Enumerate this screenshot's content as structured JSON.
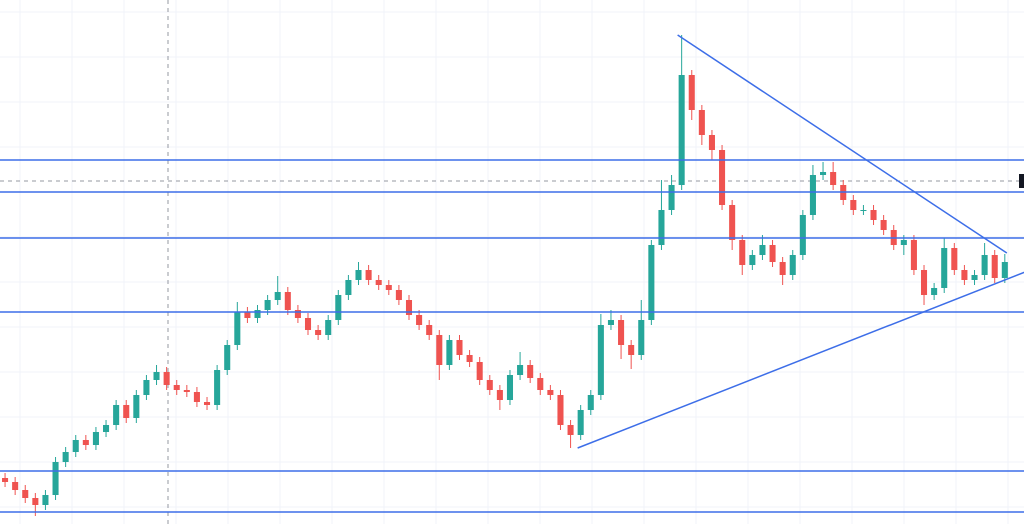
{
  "chart_data": {
    "type": "candlestick",
    "xlim": [
      -0.5,
      100.9
    ],
    "ylim": [
      0,
      524
    ],
    "grid": true,
    "up_color": "#26a69a",
    "down_color": "#ef5350",
    "line_color": "#3d6ee8",
    "open": [
      46,
      42,
      34,
      26,
      19,
      29,
      62,
      72,
      84,
      79,
      92,
      99,
      119,
      106,
      129,
      144,
      152,
      139,
      134,
      132,
      122,
      119,
      154,
      179,
      212,
      206,
      214,
      224,
      232,
      214,
      206,
      194,
      189,
      204,
      229,
      244,
      254,
      244,
      239,
      234,
      224,
      209,
      199,
      189,
      159,
      184,
      169,
      162,
      144,
      134,
      124,
      149,
      159,
      146,
      134,
      129,
      99,
      89,
      114,
      129,
      199,
      204,
      179,
      169,
      204,
      279,
      314,
      339,
      449,
      414,
      389,
      374,
      319,
      284,
      259,
      269,
      279,
      262,
      249,
      269,
      309,
      349,
      352,
      339,
      324,
      314,
      314,
      304,
      294,
      279,
      284,
      254,
      229,
      236,
      276,
      254,
      244,
      249,
      269,
      246
    ],
    "high": [
      51,
      47,
      39,
      31,
      34,
      67,
      77,
      89,
      89,
      97,
      104,
      124,
      124,
      134,
      149,
      159,
      157,
      144,
      139,
      137,
      127,
      159,
      184,
      222,
      217,
      219,
      229,
      248,
      237,
      219,
      211,
      199,
      209,
      234,
      249,
      262,
      259,
      249,
      244,
      239,
      229,
      214,
      204,
      194,
      189,
      189,
      174,
      167,
      149,
      139,
      154,
      172,
      164,
      151,
      139,
      134,
      104,
      119,
      134,
      210,
      214,
      209,
      184,
      224,
      284,
      344,
      349,
      489,
      454,
      419,
      394,
      379,
      324,
      289,
      274,
      289,
      284,
      267,
      274,
      314,
      359,
      362,
      362,
      344,
      329,
      319,
      319,
      309,
      299,
      289,
      289,
      259,
      241,
      286,
      281,
      259,
      254,
      281,
      274,
      270
    ],
    "low": [
      37,
      29,
      21,
      8,
      14,
      24,
      57,
      67,
      74,
      74,
      87,
      94,
      101,
      101,
      124,
      139,
      134,
      129,
      127,
      117,
      114,
      114,
      149,
      174,
      201,
      201,
      209,
      219,
      209,
      201,
      189,
      184,
      184,
      199,
      224,
      239,
      239,
      234,
      229,
      219,
      204,
      194,
      184,
      144,
      154,
      164,
      157,
      139,
      129,
      114,
      119,
      144,
      141,
      129,
      124,
      94,
      76,
      84,
      109,
      124,
      194,
      165,
      155,
      164,
      199,
      274,
      309,
      334,
      404,
      379,
      364,
      314,
      274,
      249,
      254,
      264,
      257,
      239,
      244,
      264,
      304,
      344,
      334,
      319,
      309,
      309,
      299,
      289,
      274,
      269,
      249,
      219,
      224,
      231,
      249,
      239,
      239,
      244,
      241,
      241
    ],
    "close": [
      42,
      34,
      26,
      19,
      29,
      62,
      72,
      84,
      79,
      92,
      99,
      119,
      106,
      129,
      144,
      152,
      139,
      134,
      132,
      122,
      119,
      154,
      179,
      212,
      206,
      214,
      224,
      232,
      214,
      206,
      194,
      189,
      204,
      229,
      244,
      254,
      244,
      239,
      234,
      224,
      209,
      199,
      189,
      159,
      184,
      169,
      162,
      144,
      134,
      124,
      149,
      159,
      146,
      134,
      129,
      99,
      89,
      114,
      129,
      199,
      204,
      179,
      169,
      204,
      279,
      314,
      339,
      449,
      414,
      389,
      374,
      319,
      284,
      259,
      269,
      279,
      262,
      249,
      269,
      309,
      349,
      352,
      339,
      324,
      314,
      314,
      304,
      294,
      279,
      284,
      254,
      229,
      236,
      276,
      254,
      244,
      249,
      269,
      246,
      262
    ],
    "levels": [
      364,
      332,
      286,
      212,
      53,
      12
    ],
    "trendlines": [
      {
        "x": [
          66.6,
          99.2
        ],
        "y": [
          489,
          271
        ]
      },
      {
        "x": [
          56.7,
          101
        ],
        "y": [
          76,
          252
        ]
      }
    ]
  }
}
